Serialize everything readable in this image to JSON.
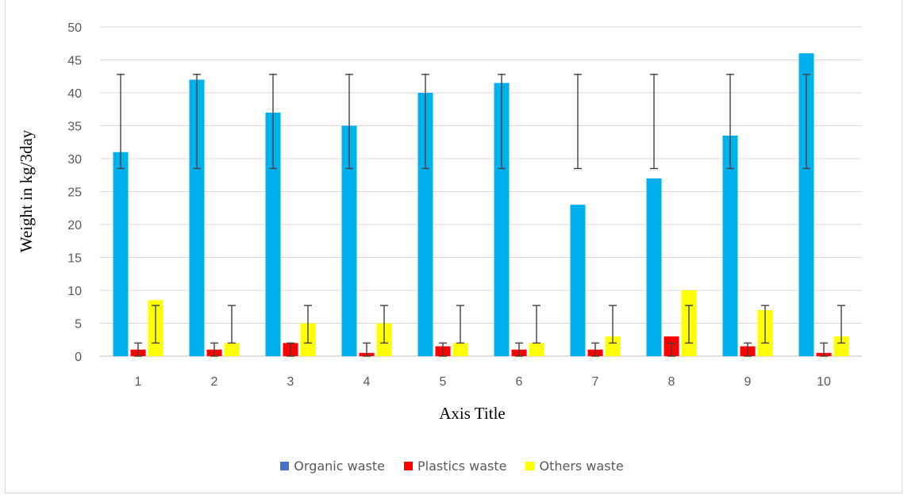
{
  "chart_data": {
    "type": "bar",
    "top_text": "",
    "xlabel": "Axis Title",
    "ylabel": "Weight in kg/3day",
    "ylim": [
      0,
      50
    ],
    "yticks": [
      0,
      5,
      10,
      15,
      20,
      25,
      30,
      35,
      40,
      45,
      50
    ],
    "grid": true,
    "legend_position": "bottom",
    "categories": [
      "1",
      "2",
      "3",
      "4",
      "5",
      "6",
      "7",
      "8",
      "9",
      "10"
    ],
    "series": [
      {
        "name": "Organic waste",
        "legend_color": "#4472C4",
        "bar_color": "#00B0F0",
        "values": [
          31,
          42,
          37,
          35,
          40,
          41.5,
          23,
          27,
          33.5,
          46
        ],
        "error_low": 28.5,
        "error_high": 42.8
      },
      {
        "name": "Plastics waste",
        "legend_color": "#FF0000",
        "bar_color": "#FF0000",
        "values": [
          1,
          1,
          2,
          0.5,
          1.5,
          1,
          1,
          3,
          1.5,
          0.5
        ],
        "error_low": 0,
        "error_high": 2
      },
      {
        "name": "Others waste",
        "legend_color": "#FFFF00",
        "bar_color": "#FFFF00",
        "values": [
          8.5,
          2,
          5,
          5,
          2,
          2,
          3,
          10,
          7,
          3
        ],
        "error_low": 2,
        "error_high": 7.7
      }
    ]
  }
}
